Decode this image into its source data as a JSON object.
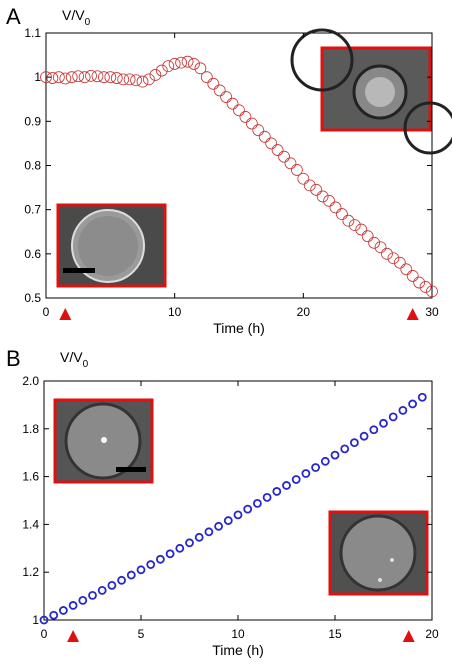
{
  "chart_data": [
    {
      "type": "scatter",
      "panel": "A",
      "y_label": "V/V",
      "y_label_subscript": "0",
      "x_label": "Time (h)",
      "color": "#c83232",
      "marker": "open-circle",
      "x": [
        0,
        0.5,
        1,
        1.5,
        2,
        2.5,
        3,
        3.5,
        4,
        4.5,
        5,
        5.5,
        6,
        6.5,
        7,
        7.5,
        8,
        8.5,
        9,
        9.5,
        10,
        10.5,
        11,
        11.5,
        12,
        12.5,
        13,
        13.5,
        14,
        14.5,
        15,
        15.5,
        16,
        16.5,
        17,
        17.5,
        18,
        18.5,
        19,
        19.5,
        20,
        20.5,
        21,
        21.5,
        22,
        22.5,
        23,
        23.5,
        24,
        24.5,
        25,
        25.5,
        26,
        26.5,
        27,
        27.5,
        28,
        28.5,
        29,
        29.5,
        30
      ],
      "values": [
        1.0,
        0.998,
        1.0,
        0.997,
        1.0,
        1.002,
        1.0,
        1.003,
        1.002,
        1.0,
        1.0,
        0.998,
        0.995,
        0.995,
        0.993,
        0.99,
        0.995,
        1.005,
        1.015,
        1.025,
        1.03,
        1.033,
        1.035,
        1.03,
        1.02,
        1.0,
        0.985,
        0.97,
        0.955,
        0.94,
        0.925,
        0.91,
        0.895,
        0.88,
        0.865,
        0.85,
        0.835,
        0.82,
        0.805,
        0.79,
        0.77,
        0.755,
        0.745,
        0.73,
        0.72,
        0.705,
        0.69,
        0.675,
        0.665,
        0.655,
        0.64,
        0.625,
        0.615,
        0.6,
        0.59,
        0.58,
        0.565,
        0.55,
        0.535,
        0.525,
        0.515
      ],
      "xlim": [
        0,
        30
      ],
      "xticks": [
        0,
        10,
        20,
        30
      ],
      "ylim": [
        0.5,
        1.1
      ],
      "yticks": [
        0.5,
        0.6,
        0.7,
        0.8,
        0.9,
        1,
        1.1
      ],
      "markers_x": [
        1.5,
        28.5
      ],
      "marker_color": "#e01010"
    },
    {
      "type": "scatter",
      "panel": "B",
      "y_label": "V/V",
      "y_label_subscript": "0",
      "x_label": "Time (h)",
      "color": "#2626d0",
      "marker": "open-circle",
      "x": [
        0,
        0.5,
        1,
        1.5,
        2,
        2.5,
        3,
        3.5,
        4,
        4.5,
        5,
        5.5,
        6,
        6.5,
        7,
        7.5,
        8,
        8.5,
        9,
        9.5,
        10,
        10.5,
        11,
        11.5,
        12,
        12.5,
        13,
        13.5,
        14,
        14.5,
        15,
        15.5,
        16,
        16.5,
        17,
        17.5,
        18,
        18.5,
        19,
        19.5
      ],
      "values": [
        1.0,
        1.02,
        1.04,
        1.061,
        1.082,
        1.103,
        1.124,
        1.145,
        1.166,
        1.188,
        1.21,
        1.232,
        1.254,
        1.277,
        1.3,
        1.323,
        1.346,
        1.369,
        1.392,
        1.416,
        1.44,
        1.464,
        1.488,
        1.513,
        1.538,
        1.563,
        1.588,
        1.613,
        1.638,
        1.664,
        1.69,
        1.716,
        1.742,
        1.769,
        1.796,
        1.823,
        1.85,
        1.877,
        1.904,
        1.932
      ],
      "xlim": [
        0,
        20
      ],
      "xticks": [
        0,
        5,
        10,
        15,
        20
      ],
      "ylim": [
        1,
        2
      ],
      "yticks": [
        1,
        1.2,
        1.4,
        1.6,
        1.8,
        {
          "value": 2,
          "label": "2.0"
        }
      ],
      "markers_x": [
        1.5,
        18.8
      ],
      "marker_color": "#e01010"
    }
  ]
}
